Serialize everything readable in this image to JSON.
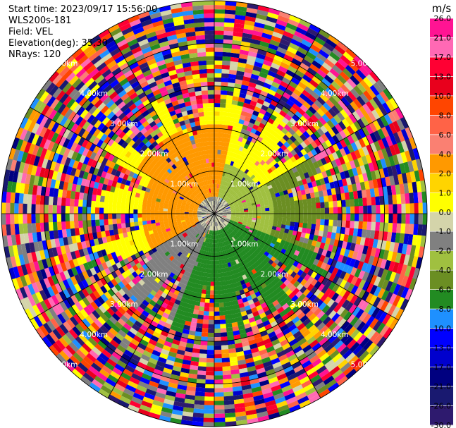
{
  "header": {
    "start_time": "Start time: 2023/09/17 15:56:00",
    "instrument": "WLS200s-181",
    "field": "Field: VEL",
    "elevation": "Elevation(deg): 35.30",
    "nrays": "NRays: 120"
  },
  "colorbar": {
    "unit": "m/s",
    "ticks": [
      "26.0",
      "21.0",
      "17.0",
      "13.0",
      "10.0",
      "8.0",
      "6.0",
      "4.0",
      "2.0",
      "1.0",
      "0.0",
      "-1.0",
      "-2.0",
      "-4.0",
      "-6.0",
      "-8.0",
      "-10.0",
      "-13.0",
      "-17.0",
      "-21.0",
      "-26.0",
      "-30.0"
    ],
    "colors": [
      "#ff1493",
      "#ff69b4",
      "#ff0033",
      "#e8001c",
      "#ff4500",
      "#ff6347",
      "#fa8072",
      "#ff9900",
      "#ffd400",
      "#ffff00",
      "#d4d4aa",
      "#808080",
      "#a0c040",
      "#6b8e23",
      "#228b22",
      "#1e90ff",
      "#0000ff",
      "#0000cd",
      "#000080",
      "#191970",
      "#2e1a6e"
    ]
  },
  "chart_data": {
    "type": "heatmap",
    "projection": "polar-ppi",
    "range_rings_km": [
      1.0,
      2.0,
      3.0,
      4.0,
      5.0
    ],
    "range_ring_labels": [
      "1.00km",
      "2.00km",
      "3.00km",
      "4.00km",
      "5.00km"
    ],
    "rays": 120,
    "field": "VEL",
    "unit": "m/s",
    "value_range": [
      -30.0,
      26.0
    ]
  }
}
